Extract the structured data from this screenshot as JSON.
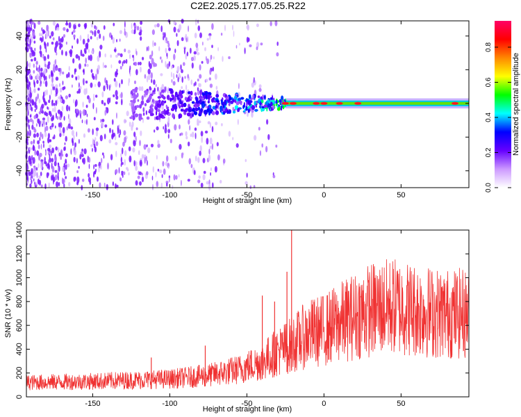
{
  "figure_title": "C2E2.2025.177.05.25.R22",
  "chart_data": [
    {
      "type": "heatmap",
      "title": "C2E2.2025.177.05.25.R22",
      "xlabel": "Height of straight line (km)",
      "ylabel": "Frequency (Hz)",
      "xlim": [
        -193,
        94
      ],
      "ylim": [
        -50,
        49
      ],
      "xticks": [
        -150,
        -100,
        -50,
        0,
        50
      ],
      "xtick_labels": [
        "-150",
        "-100",
        "-50",
        "0",
        "50"
      ],
      "yticks": [
        -40,
        -20,
        0,
        20,
        40
      ],
      "ytick_labels": [
        "-40",
        "-20",
        "0",
        "20",
        "40"
      ],
      "colorbar": {
        "label": "Normalized spectral amplitude",
        "range": [
          0,
          0.95
        ],
        "ticks": [
          0.0,
          0.2,
          0.4,
          0.6,
          0.8
        ],
        "tick_labels": [
          "0.0",
          "0.2",
          "0.4",
          "0.6",
          "0.8"
        ],
        "colormap": [
          "#ffffff",
          "#cc99ff",
          "#6600ff",
          "#0000ff",
          "#00ffff",
          "#00ff00",
          "#ffff00",
          "#ff8800",
          "#ff0000",
          "#ff0066"
        ]
      },
      "ridge": {
        "frequency_hz": 0,
        "peaks_x_km": [
          -25,
          -20,
          -5,
          0,
          10,
          22,
          85
        ]
      },
      "grid": false
    },
    {
      "type": "line",
      "xlabel": "Height of straight line (km)",
      "ylabel": "SNR (10 * v/v)",
      "xlim": [
        -193,
        94
      ],
      "ylim": [
        0,
        1400
      ],
      "xticks": [
        -150,
        -100,
        -50,
        0,
        50
      ],
      "xtick_labels": [
        "-150",
        "-100",
        "-50",
        "0",
        "50"
      ],
      "yticks": [
        0,
        200,
        400,
        600,
        800,
        1000,
        1200,
        1400
      ],
      "ytick_labels": [
        "0",
        "200",
        "400",
        "600",
        "800",
        "1000",
        "1200",
        "1400"
      ],
      "line_color": "#f03232",
      "trend": {
        "x": [
          -193,
          -150,
          -100,
          -75,
          -55,
          -40,
          -30,
          -22,
          -10,
          0,
          15,
          30,
          45,
          60,
          75,
          94
        ],
        "y": [
          120,
          130,
          150,
          180,
          230,
          300,
          380,
          430,
          530,
          560,
          650,
          730,
          760,
          730,
          700,
          700
        ]
      },
      "spikes": [
        {
          "x": -21,
          "y": 1400
        },
        {
          "x": -24,
          "y": 1050
        },
        {
          "x": -40,
          "y": 850
        },
        {
          "x": -32,
          "y": 800
        },
        {
          "x": -77,
          "y": 430
        },
        {
          "x": -112,
          "y": 330
        }
      ],
      "grid": false
    }
  ]
}
